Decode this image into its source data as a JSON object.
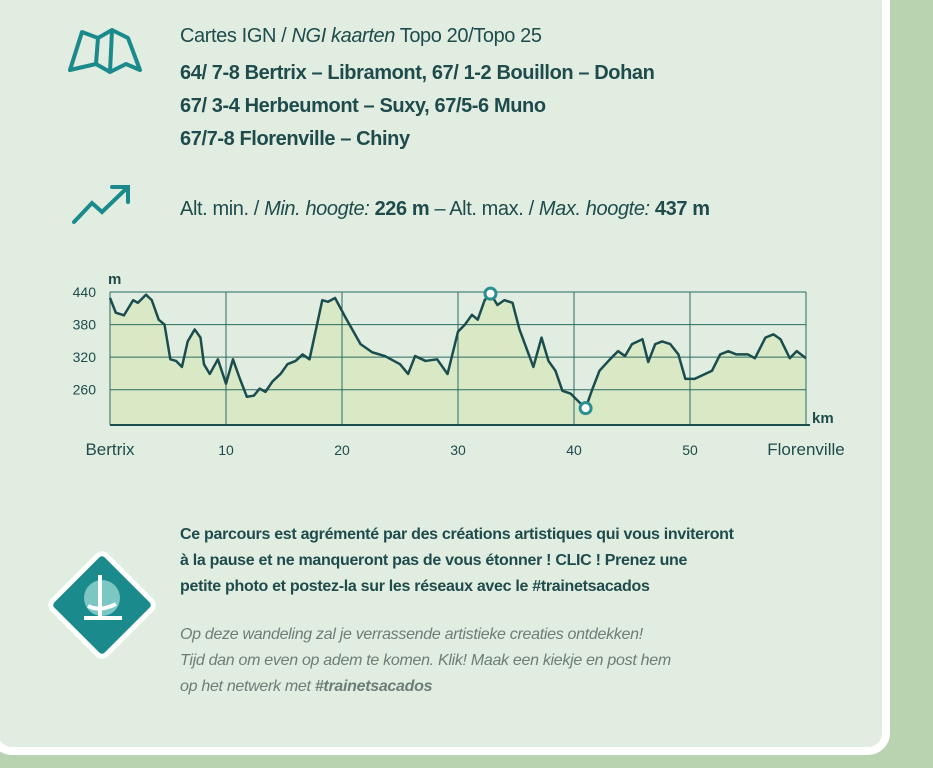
{
  "maps": {
    "intro": "Cartes IGN / ",
    "intro_italic": "NGI kaarten",
    "intro_end": " Topo 20/Topo 25",
    "lines": [
      "64/ 7-8 Bertrix – Libramont, 67/ 1-2 Bouillon – Dohan",
      "67/ 3-4 Herbeumont – Suxy, 67/5-6 Muno",
      "67/7-8 Florenville – Chiny"
    ]
  },
  "altitude": {
    "min_label": "Alt. min. / ",
    "min_label_italic": "Min. hoogte:",
    "min": "226 m",
    "max_label": " – Alt. max. / ",
    "max_label_italic": "Max. hoogte:",
    "max": "437 m"
  },
  "chart_data": {
    "type": "line",
    "y_label": "m",
    "x_label": "km",
    "color": "#1b4d4f",
    "fill": "#d9e9c6",
    "marker_color": "#2a8f93",
    "x": [
      0,
      0.5,
      1.2,
      2,
      2.4,
      3.1,
      3.6,
      4.2,
      4.7,
      5.2,
      5.7,
      6.2,
      6.7,
      7.3,
      7.8,
      8.1,
      8.6,
      9.3,
      10,
      10.6,
      11.2,
      11.8,
      12.4,
      12.9,
      13.4,
      14,
      14.7,
      15.3,
      16,
      16.6,
      17.2,
      18.3,
      18.8,
      19.4,
      20.3,
      21.6,
      22.6,
      23.7,
      25,
      25.7,
      26.3,
      27.2,
      28.2,
      29.1,
      30,
      30.6,
      31.2,
      31.7,
      32.3,
      32.8,
      33.4,
      34,
      34.7,
      35.3,
      36.5,
      37.2,
      37.8,
      38.4,
      39,
      39.7,
      40.5,
      41,
      41.6,
      42.2,
      43.1,
      43.8,
      44.4,
      45,
      45.9,
      46.4,
      47,
      47.6,
      48.3,
      49,
      49.6,
      50.4,
      51.9,
      52.6,
      53.3,
      54,
      55,
      55.6,
      56.5,
      57.2,
      57.8,
      58.6,
      59.2,
      60
    ],
    "values": [
      429,
      402,
      397,
      425,
      420,
      435,
      425,
      389,
      380,
      316,
      313,
      302,
      349,
      371,
      356,
      307,
      289,
      316,
      271,
      316,
      280,
      247,
      249,
      262,
      256,
      275,
      289,
      307,
      313,
      325,
      316,
      425,
      422,
      429,
      393,
      344,
      329,
      322,
      307,
      289,
      322,
      313,
      316,
      289,
      367,
      380,
      398,
      389,
      425,
      437,
      416,
      425,
      420,
      371,
      302,
      356,
      313,
      295,
      258,
      253,
      236,
      226,
      262,
      295,
      316,
      331,
      322,
      344,
      353,
      311,
      344,
      349,
      344,
      325,
      280,
      280,
      295,
      325,
      331,
      325,
      325,
      318,
      356,
      362,
      353,
      318,
      331,
      318
    ],
    "markers": [
      {
        "x": 32.8,
        "value": 437
      },
      {
        "x": 41,
        "value": 226
      }
    ],
    "xlim": [
      0,
      60
    ],
    "ylim": [
      195,
      440
    ],
    "xticks": [
      {
        "value": 0,
        "label": "Bertrix"
      },
      10,
      20,
      30,
      40,
      50,
      {
        "value": 60,
        "label": "Florenville"
      }
    ],
    "yticks": [
      260,
      320,
      380,
      440
    ],
    "grid": true
  },
  "art": {
    "french": [
      "Ce parcours est agrémenté par des créations artistiques qui vous inviteront",
      "à la pause et ne manqueront pas de vous étonner ! CLIC ! Prenez une",
      "petite photo et postez-la sur les réseaux avec le #trainetsacados"
    ],
    "dutch": [
      "Op deze wandeling zal je verrassende artistieke creaties ontdekken!",
      "Tijd dan om even op adem te komen. Klik! Maak een kiekje en post hem"
    ],
    "dutch_last": "op het netwerk met ",
    "dutch_tag": "#trainetsacados"
  }
}
